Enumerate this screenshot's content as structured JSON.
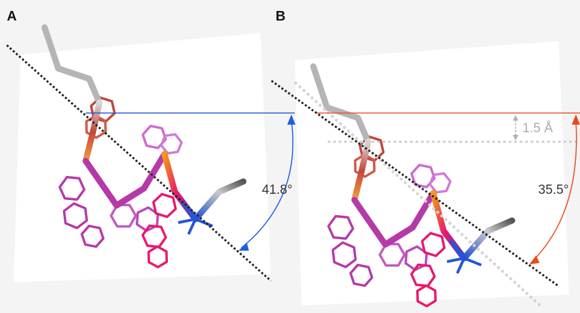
{
  "panels": [
    {
      "label": "A",
      "angle": "41.8°"
    },
    {
      "label": "B",
      "angle": "35.5°",
      "offset": "1.5 Å"
    }
  ]
}
